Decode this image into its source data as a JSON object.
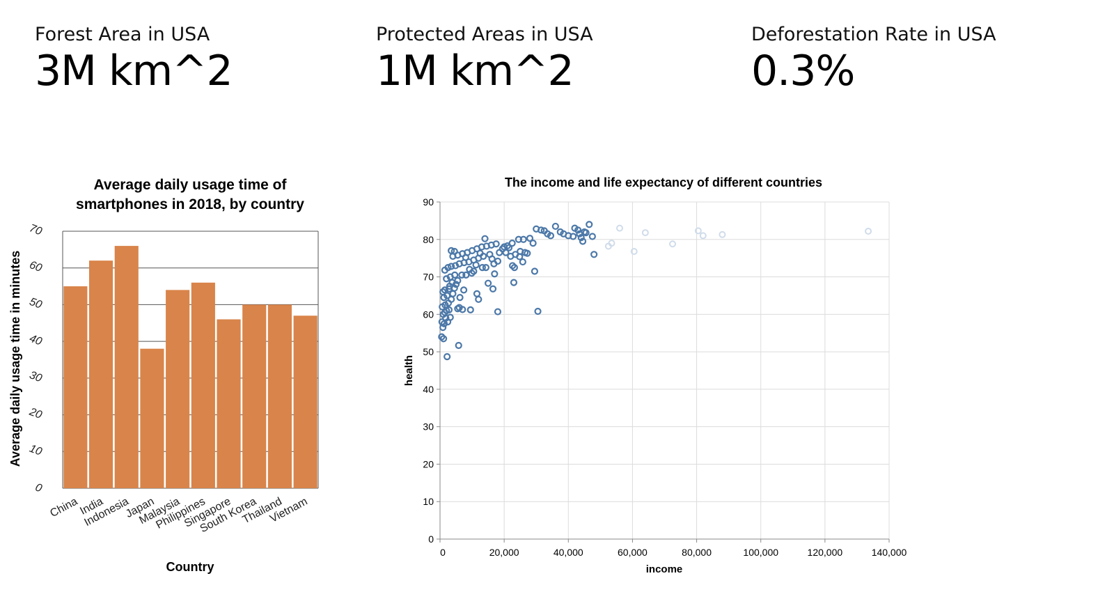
{
  "kpis": [
    {
      "label": "Forest Area in USA",
      "value": "3M km^2"
    },
    {
      "label": "Protected Areas in USA",
      "value": "1M km^2"
    },
    {
      "label": "Deforestation Rate in USA",
      "value": "0.3%"
    }
  ],
  "chart_data": [
    {
      "type": "bar",
      "title": [
        "Average daily usage time of",
        "smartphones in 2018, by country"
      ],
      "xlabel": "Country",
      "ylabel": "Average daily usage time in minutes",
      "categories": [
        "China",
        "India",
        "Indonesia",
        "Japan",
        "Malaysia",
        "Philippines",
        "Singapore",
        "South Korea",
        "Thailand",
        "Vietnam"
      ],
      "values": [
        55,
        62,
        66,
        38,
        54,
        56,
        46,
        50,
        50,
        47
      ],
      "ylim": [
        0,
        70
      ],
      "yticks": [
        0,
        10,
        20,
        30,
        40,
        50,
        60,
        70
      ],
      "grid": true,
      "color": "#d9844a"
    },
    {
      "type": "scatter",
      "title": "The income and life expectancy of different countries",
      "xlabel": "income",
      "ylabel": "health",
      "xlim": [
        0,
        140000
      ],
      "ylim": [
        0,
        90
      ],
      "xticks": [
        0,
        20000,
        40000,
        60000,
        80000,
        100000,
        120000,
        140000
      ],
      "xtick_labels": [
        "0",
        "20,000",
        "40,000",
        "60,000",
        "80,000",
        "100,000",
        "120,000",
        "140,000"
      ],
      "yticks": [
        0,
        10,
        20,
        30,
        40,
        50,
        60,
        70,
        80,
        90
      ],
      "grid": true,
      "color": "#4c78a8",
      "faded_color": "#d0dcea",
      "points": [
        [
          500,
          54
        ],
        [
          1100,
          53.5
        ],
        [
          2200,
          48.7
        ],
        [
          5800,
          51.7
        ],
        [
          900,
          56.5
        ],
        [
          1300,
          57.5
        ],
        [
          600,
          58
        ],
        [
          2400,
          58
        ],
        [
          1800,
          59
        ],
        [
          3200,
          59.2
        ],
        [
          1000,
          60
        ],
        [
          1500,
          60.5
        ],
        [
          2000,
          61
        ],
        [
          2800,
          61.2
        ],
        [
          5500,
          61.5
        ],
        [
          6000,
          61.8
        ],
        [
          7000,
          61.3
        ],
        [
          9500,
          61.2
        ],
        [
          18000,
          60.7
        ],
        [
          30500,
          60.8
        ],
        [
          700,
          62
        ],
        [
          1600,
          62.5
        ],
        [
          2600,
          63
        ],
        [
          3500,
          64
        ],
        [
          1200,
          64.5
        ],
        [
          2200,
          65
        ],
        [
          4000,
          65.5
        ],
        [
          6200,
          64.5
        ],
        [
          11500,
          65.5
        ],
        [
          12000,
          64
        ],
        [
          900,
          66
        ],
        [
          1500,
          66.5
        ],
        [
          2800,
          66.8
        ],
        [
          4500,
          67
        ],
        [
          7400,
          66.5
        ],
        [
          3000,
          67.5
        ],
        [
          5000,
          68
        ],
        [
          3800,
          68.5
        ],
        [
          5500,
          69
        ],
        [
          15000,
          68.3
        ],
        [
          23000,
          68.5
        ],
        [
          16500,
          66.8
        ],
        [
          2000,
          69.5
        ],
        [
          3200,
          70
        ],
        [
          4600,
          70.5
        ],
        [
          6800,
          70.5
        ],
        [
          8100,
          70.5
        ],
        [
          9900,
          71
        ],
        [
          10500,
          71.5
        ],
        [
          13200,
          72.5
        ],
        [
          17000,
          70.8
        ],
        [
          29500,
          71.5
        ],
        [
          1500,
          71.8
        ],
        [
          2500,
          72.5
        ],
        [
          3500,
          72.8
        ],
        [
          4800,
          73
        ],
        [
          6000,
          73.5
        ],
        [
          7500,
          73.8
        ],
        [
          9000,
          74
        ],
        [
          10500,
          74.5
        ],
        [
          12000,
          75
        ],
        [
          13500,
          75.5
        ],
        [
          15500,
          76
        ],
        [
          18000,
          74.2
        ],
        [
          20500,
          76.5
        ],
        [
          22000,
          75.5
        ],
        [
          23500,
          76
        ],
        [
          25000,
          76.8
        ],
        [
          26500,
          76.5
        ],
        [
          4000,
          75.5
        ],
        [
          5500,
          75.8
        ],
        [
          7000,
          76.2
        ],
        [
          8500,
          76.5
        ],
        [
          10000,
          77
        ],
        [
          11500,
          77.5
        ],
        [
          13000,
          78
        ],
        [
          14500,
          78.2
        ],
        [
          16000,
          78.5
        ],
        [
          17500,
          78.8
        ],
        [
          19500,
          77.5
        ],
        [
          21000,
          78.3
        ],
        [
          22500,
          79
        ],
        [
          24500,
          80
        ],
        [
          26000,
          80
        ],
        [
          28000,
          80.3
        ],
        [
          29000,
          79
        ],
        [
          30000,
          82.8
        ],
        [
          31500,
          82.5
        ],
        [
          32500,
          82.3
        ],
        [
          33500,
          81.5
        ],
        [
          34500,
          81
        ],
        [
          36000,
          83.5
        ],
        [
          37500,
          82
        ],
        [
          38500,
          81.5
        ],
        [
          40000,
          81
        ],
        [
          41500,
          80.8
        ],
        [
          42000,
          83
        ],
        [
          43000,
          82.5
        ],
        [
          43500,
          81.5
        ],
        [
          44000,
          80.5
        ],
        [
          44500,
          79.5
        ],
        [
          45000,
          82
        ],
        [
          45500,
          81.8
        ],
        [
          46500,
          84
        ],
        [
          47500,
          80.8
        ],
        [
          48000,
          76
        ],
        [
          3500,
          77
        ],
        [
          4500,
          76.8
        ],
        [
          8000,
          75.2
        ],
        [
          12500,
          76.3
        ],
        [
          14000,
          80.2
        ],
        [
          16800,
          73.5
        ],
        [
          16200,
          74.8
        ],
        [
          18500,
          76.5
        ],
        [
          20000,
          78
        ],
        [
          21500,
          77.8
        ],
        [
          22600,
          73
        ],
        [
          23200,
          72.5
        ],
        [
          24800,
          75.4
        ],
        [
          25800,
          74
        ],
        [
          27200,
          76.3
        ],
        [
          9200,
          72
        ],
        [
          11200,
          73.2
        ],
        [
          14300,
          72.5
        ]
      ],
      "faded_points": [
        [
          52500,
          78.2
        ],
        [
          53500,
          79
        ],
        [
          56000,
          83
        ],
        [
          60500,
          76.8
        ],
        [
          64000,
          81.8
        ],
        [
          72500,
          78.8
        ],
        [
          80500,
          82.3
        ],
        [
          82000,
          81
        ],
        [
          88000,
          81.3
        ],
        [
          133500,
          82.2
        ]
      ]
    }
  ]
}
